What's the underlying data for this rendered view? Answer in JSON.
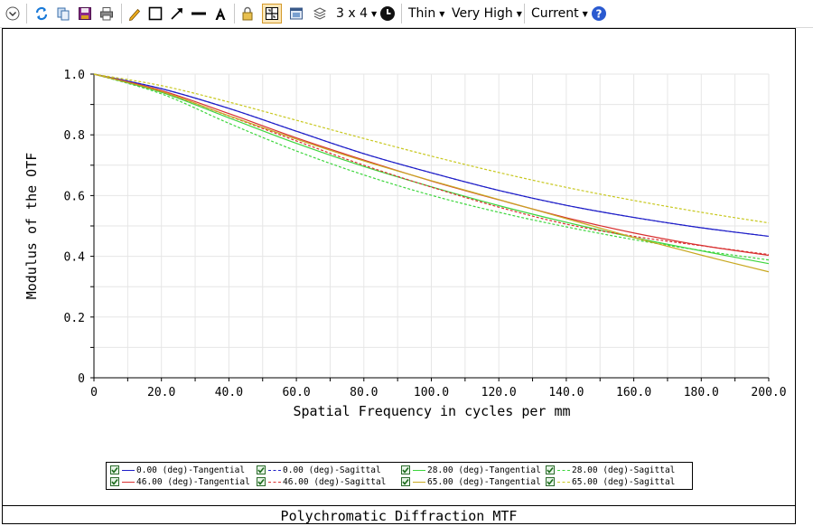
{
  "toolbar": {
    "line_width": "Thin",
    "quality": "Very High",
    "layout": "3 x 4",
    "config": "Current"
  },
  "chart_data": {
    "type": "line",
    "title": "Polychromatic Diffraction MTF",
    "xlabel": "Spatial Frequency in cycles per mm",
    "ylabel": "Modulus of the OTF",
    "xlim": [
      0,
      200
    ],
    "ylim": [
      0,
      1.0
    ],
    "x_ticks": [
      "0",
      "20.0",
      "40.0",
      "60.0",
      "80.0",
      "100.0",
      "120.0",
      "140.0",
      "160.0",
      "180.0",
      "200.0"
    ],
    "y_ticks": [
      "0",
      "0.2",
      "0.4",
      "0.6",
      "0.8",
      "1.0"
    ],
    "grid": true,
    "legend_position": "bottom",
    "x": [
      0,
      20,
      40,
      60,
      80,
      100,
      120,
      140,
      160,
      180,
      200
    ],
    "series": [
      {
        "name": "0.00 (deg)-Tangential",
        "color": "#1f1fc8",
        "dash": false,
        "values": [
          1.0,
          0.952,
          0.887,
          0.812,
          0.738,
          0.675,
          0.617,
          0.568,
          0.528,
          0.494,
          0.466
        ]
      },
      {
        "name": "0.00 (deg)-Sagittal",
        "color": "#1f1fc8",
        "dash": true,
        "values": [
          1.0,
          0.952,
          0.887,
          0.812,
          0.738,
          0.675,
          0.617,
          0.568,
          0.528,
          0.494,
          0.466
        ]
      },
      {
        "name": "28.00 (deg)-Tangential",
        "color": "#3dd63d",
        "dash": false,
        "values": [
          1.0,
          0.94,
          0.856,
          0.772,
          0.696,
          0.629,
          0.567,
          0.512,
          0.462,
          0.418,
          0.376
        ]
      },
      {
        "name": "28.00 (deg)-Sagittal",
        "color": "#3dd63d",
        "dash": true,
        "values": [
          1.0,
          0.935,
          0.838,
          0.747,
          0.668,
          0.601,
          0.545,
          0.497,
          0.455,
          0.419,
          0.388
        ]
      },
      {
        "name": "46.00 (deg)-Tangential",
        "color": "#d83030",
        "dash": false,
        "values": [
          1.0,
          0.946,
          0.87,
          0.79,
          0.717,
          0.648,
          0.586,
          0.527,
          0.477,
          0.436,
          0.403
        ]
      },
      {
        "name": "46.00 (deg)-Sagittal",
        "color": "#d83030",
        "dash": true,
        "values": [
          1.0,
          0.942,
          0.862,
          0.78,
          0.7,
          0.628,
          0.562,
          0.506,
          0.466,
          0.435,
          0.406
        ]
      },
      {
        "name": "65.00 (deg)-Tangential",
        "color": "#c8a820",
        "dash": false,
        "values": [
          1.0,
          0.943,
          0.863,
          0.786,
          0.714,
          0.649,
          0.587,
          0.524,
          0.462,
          0.404,
          0.349
        ]
      },
      {
        "name": "65.00 (deg)-Sagittal",
        "color": "#c8c820",
        "dash": true,
        "values": [
          1.0,
          0.962,
          0.908,
          0.848,
          0.788,
          0.73,
          0.676,
          0.627,
          0.584,
          0.545,
          0.51
        ]
      }
    ]
  }
}
